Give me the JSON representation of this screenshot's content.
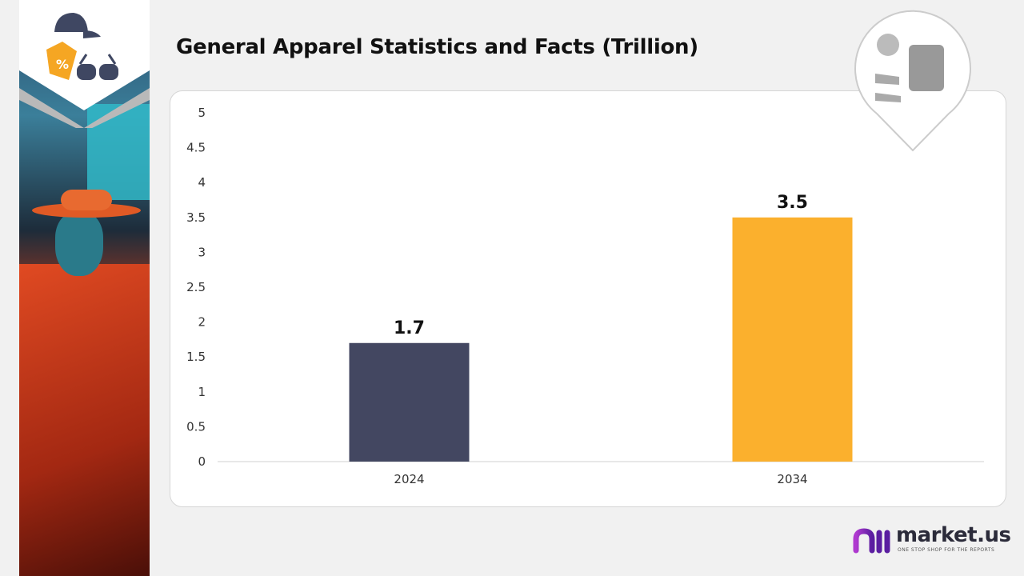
{
  "title": "General Apparel Statistics and Facts (Trillion)",
  "brand": {
    "name": "market.us",
    "tagline": "ONE STOP SHOP FOR THE REPORTS",
    "accent": "#7b2fbe"
  },
  "chart_data": {
    "type": "bar",
    "title": "General Apparel Statistics and Facts (Trillion)",
    "categories": [
      "2024",
      "2034"
    ],
    "values": [
      1.7,
      3.5
    ],
    "data_labels": [
      "1.7",
      "3.5"
    ],
    "colors": [
      "#434761",
      "#fbb02d"
    ],
    "ylim": [
      0,
      5
    ],
    "yticks": [
      "0",
      "0.5",
      "1",
      "1.5",
      "2",
      "2.5",
      "3",
      "3.5",
      "4",
      "4.5",
      "5"
    ],
    "grid": false,
    "xlabel": "",
    "ylabel": ""
  }
}
